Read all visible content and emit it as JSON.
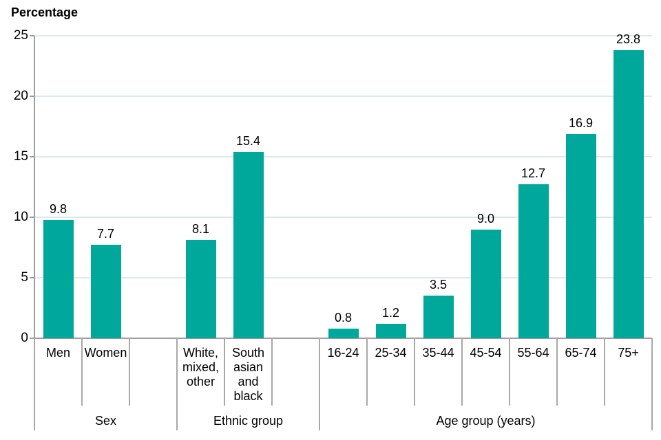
{
  "chart_data": {
    "type": "bar",
    "title": "Percentage",
    "ylabel": "Percentage",
    "xlabel": "",
    "ylim": [
      0,
      25
    ],
    "y_ticks": [
      0,
      5,
      10,
      15,
      20,
      25
    ],
    "grid": "horizontal",
    "legend": "none",
    "slot_count": 13,
    "groups": [
      {
        "label": "Sex",
        "slot_start": 0,
        "slot_end": 3
      },
      {
        "label": "Ethnic group",
        "slot_start": 3,
        "slot_end": 6
      },
      {
        "label": "Age group (years)",
        "slot_start": 6,
        "slot_end": 13
      }
    ],
    "items": [
      {
        "slot": 0,
        "group": "Sex",
        "category": "Men",
        "label_lines": [
          "Men"
        ],
        "value": 9.8,
        "value_label": "9.8"
      },
      {
        "slot": 1,
        "group": "Sex",
        "category": "Women",
        "label_lines": [
          "Women"
        ],
        "value": 7.7,
        "value_label": "7.7"
      },
      {
        "slot": 3,
        "group": "Ethnic group",
        "category": "White, mixed, other",
        "label_lines": [
          "White,",
          "mixed,",
          "other"
        ],
        "value": 8.1,
        "value_label": "8.1"
      },
      {
        "slot": 4,
        "group": "Ethnic group",
        "category": "South asian and black",
        "label_lines": [
          "South",
          "asian",
          "and",
          "black"
        ],
        "value": 15.4,
        "value_label": "15.4"
      },
      {
        "slot": 6,
        "group": "Age group (years)",
        "category": "16-24",
        "label_lines": [
          "16-24"
        ],
        "value": 0.8,
        "value_label": "0.8"
      },
      {
        "slot": 7,
        "group": "Age group (years)",
        "category": "25-34",
        "label_lines": [
          "25-34"
        ],
        "value": 1.2,
        "value_label": "1.2"
      },
      {
        "slot": 8,
        "group": "Age group (years)",
        "category": "35-44",
        "label_lines": [
          "35-44"
        ],
        "value": 3.5,
        "value_label": "3.5"
      },
      {
        "slot": 9,
        "group": "Age group (years)",
        "category": "45-54",
        "label_lines": [
          "45-54"
        ],
        "value": 9.0,
        "value_label": "9.0"
      },
      {
        "slot": 10,
        "group": "Age group (years)",
        "category": "55-64",
        "label_lines": [
          "55-64"
        ],
        "value": 12.7,
        "value_label": "12.7"
      },
      {
        "slot": 11,
        "group": "Age group (years)",
        "category": "65-74",
        "label_lines": [
          "65-74"
        ],
        "value": 16.9,
        "value_label": "16.9"
      },
      {
        "slot": 12,
        "group": "Age group (years)",
        "category": "75+",
        "label_lines": [
          "75+"
        ],
        "value": 23.8,
        "value_label": "23.8"
      }
    ],
    "colors": {
      "bar": "#00a79b",
      "gridline": "#dbe9ec",
      "axis": "#9e9e9e",
      "divider": "#a8a8a8",
      "text": "#000000",
      "background": "#ffffff"
    }
  }
}
